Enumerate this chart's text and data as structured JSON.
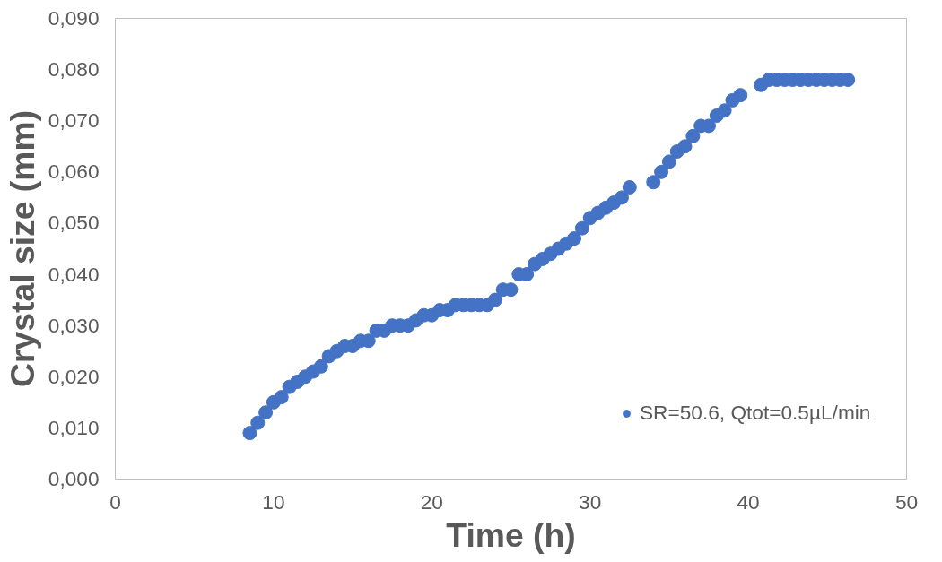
{
  "chart_data": {
    "type": "scatter",
    "xlabel": "Time (h)",
    "ylabel": "Crystal size (mm)",
    "x": [
      8.5,
      9,
      9.5,
      10,
      10.5,
      11,
      11.5,
      12,
      12.5,
      13,
      13.5,
      14,
      14.5,
      15,
      15.5,
      16,
      16.5,
      17,
      17.5,
      18,
      18.5,
      19,
      19.5,
      20,
      20.5,
      21,
      21.5,
      22,
      22.5,
      23,
      23.5,
      24,
      24.5,
      25,
      25.5,
      26,
      26.5,
      27,
      27.5,
      28,
      28.5,
      29,
      29.5,
      30,
      30.5,
      31,
      31.5,
      32,
      32.5,
      34,
      34.5,
      35,
      35.5,
      36,
      36.5,
      37,
      37.5,
      38,
      38.5,
      39,
      39.5,
      40.8,
      41.3,
      41.8,
      42.3,
      42.8,
      43.3,
      43.8,
      44.3,
      44.8,
      45.3,
      45.8,
      46.3
    ],
    "series": [
      {
        "name": "SR=50.6, Qtot=0.5µL/min",
        "color": "#4472c4",
        "values": [
          0.009,
          0.011,
          0.013,
          0.015,
          0.016,
          0.018,
          0.019,
          0.02,
          0.021,
          0.022,
          0.024,
          0.025,
          0.026,
          0.026,
          0.027,
          0.027,
          0.029,
          0.029,
          0.03,
          0.03,
          0.03,
          0.031,
          0.032,
          0.032,
          0.033,
          0.033,
          0.034,
          0.034,
          0.034,
          0.034,
          0.034,
          0.035,
          0.037,
          0.037,
          0.04,
          0.04,
          0.042,
          0.043,
          0.044,
          0.045,
          0.046,
          0.047,
          0.049,
          0.051,
          0.052,
          0.053,
          0.054,
          0.055,
          0.057,
          0.058,
          0.06,
          0.062,
          0.064,
          0.065,
          0.067,
          0.069,
          0.069,
          0.071,
          0.072,
          0.074,
          0.075,
          0.077,
          0.078,
          0.078,
          0.078,
          0.078,
          0.078,
          0.078,
          0.078,
          0.078,
          0.078,
          0.078,
          0.078
        ]
      }
    ],
    "xlim": [
      0,
      50
    ],
    "xticks": [
      0,
      10,
      20,
      30,
      40,
      50
    ],
    "ylim": [
      0,
      0.09
    ],
    "yticks": [
      {
        "value": 0,
        "label": "0,000"
      },
      {
        "value": 0.01,
        "label": "0,010"
      },
      {
        "value": 0.02,
        "label": "0,020"
      },
      {
        "value": 0.03,
        "label": "0,030"
      },
      {
        "value": 0.04,
        "label": "0,040"
      },
      {
        "value": 0.05,
        "label": "0,050"
      },
      {
        "value": 0.06,
        "label": "0,060"
      },
      {
        "value": 0.07,
        "label": "0,070"
      },
      {
        "value": 0.08,
        "label": "0,080"
      },
      {
        "value": 0.09,
        "label": "0,090"
      }
    ],
    "grid": false,
    "legend": "right",
    "marker": "circle"
  }
}
